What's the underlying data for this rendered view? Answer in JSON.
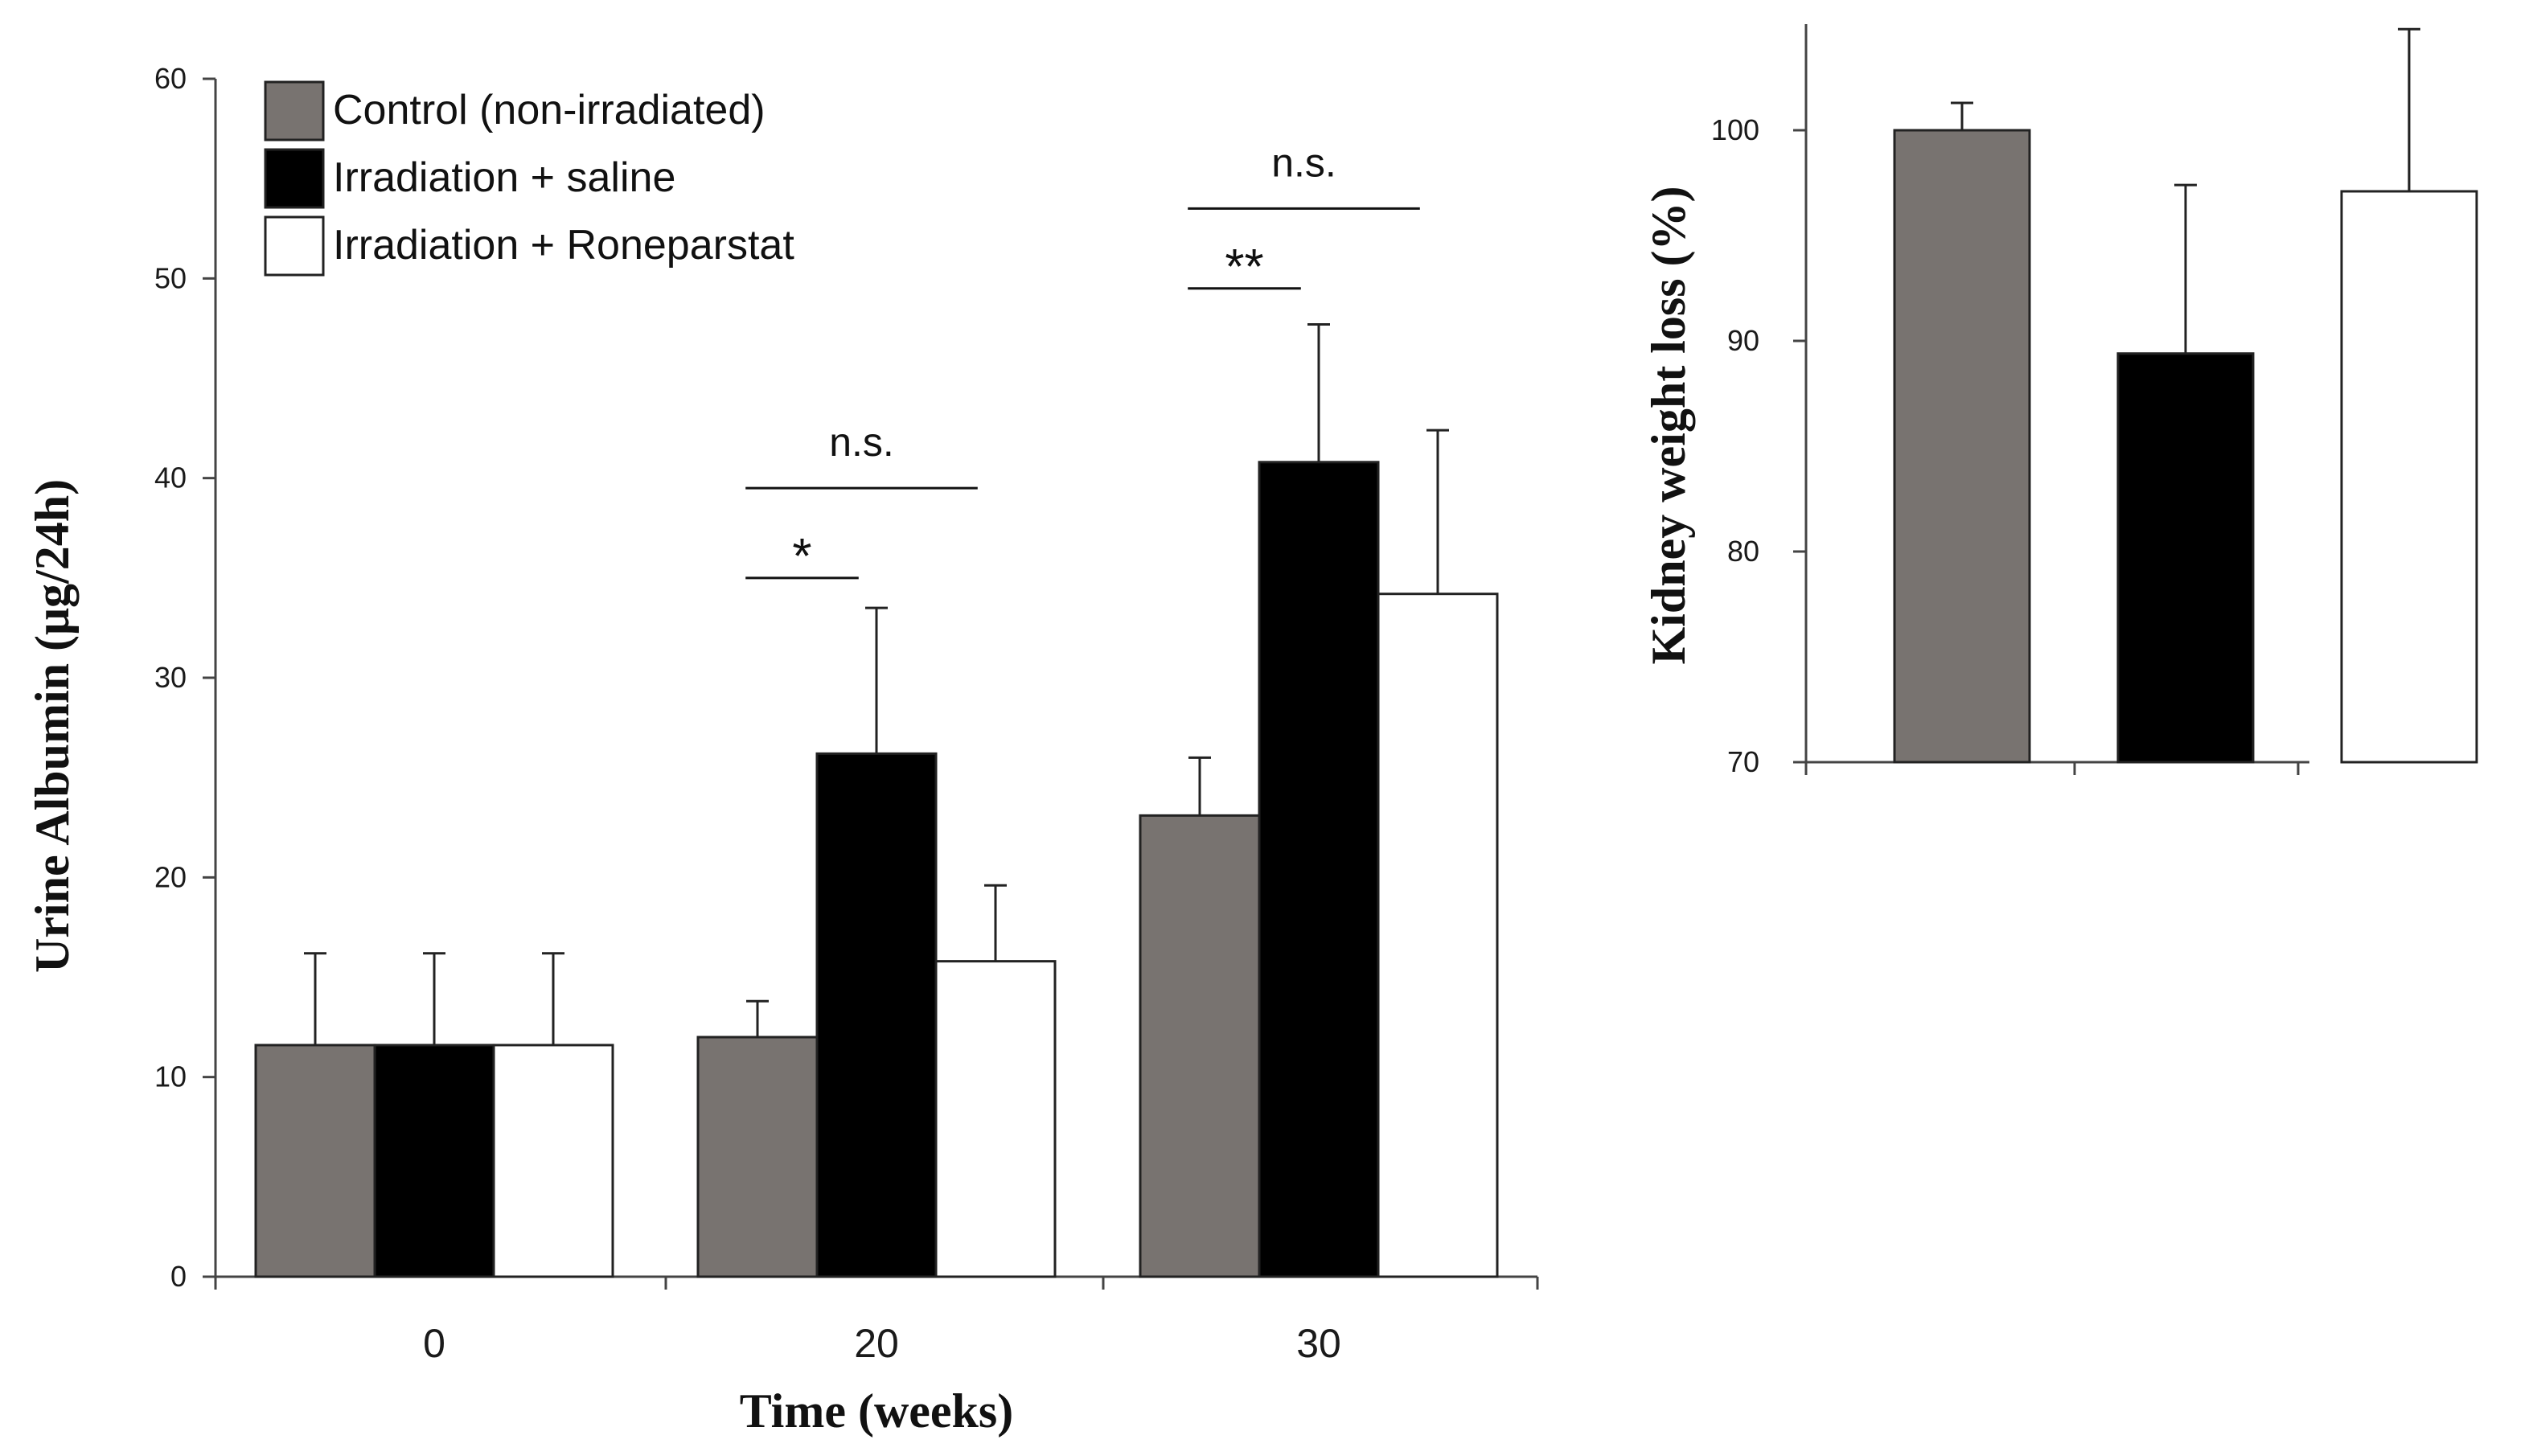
{
  "chart_data": [
    {
      "type": "bar",
      "title": "",
      "xlabel": "Time (weeks)",
      "ylabel": "Urine Albumin  (μg/24h)",
      "ylim": [
        0,
        60
      ],
      "yticks": [
        0,
        10,
        20,
        30,
        40,
        50,
        60
      ],
      "categories": [
        "0",
        "20",
        "30"
      ],
      "series": [
        {
          "name": "Control (non-irradiated)",
          "color": "#787370",
          "values": [
            11.6,
            12.0,
            23.1
          ],
          "errors": [
            4.6,
            1.8,
            2.9
          ]
        },
        {
          "name": "Irradiation + saline",
          "color": "#000000",
          "values": [
            11.6,
            26.2,
            40.8
          ],
          "errors": [
            4.6,
            7.3,
            6.9
          ]
        },
        {
          "name": "Irradiation + Roneparstat",
          "color": "#ffffff",
          "values": [
            11.6,
            15.8,
            34.2
          ],
          "errors": [
            4.6,
            3.8,
            8.2
          ]
        }
      ],
      "legend": {
        "position": "top-left"
      },
      "annotations": [
        {
          "category": "20",
          "from_series": 0,
          "to_series": 1,
          "label": "*",
          "y": 35
        },
        {
          "category": "20",
          "from_series": 0,
          "to_series": 2,
          "label": "n.s.",
          "y": 39.5
        },
        {
          "category": "30",
          "from_series": 0,
          "to_series": 1,
          "label": "**",
          "y": 49.5
        },
        {
          "category": "30",
          "from_series": 0,
          "to_series": 2,
          "label": "n.s.",
          "y": 53.5
        }
      ]
    },
    {
      "type": "bar",
      "title": "",
      "xlabel": "",
      "ylabel": "Kidney  weight loss (%)",
      "ylim": [
        70,
        105
      ],
      "yticks": [
        70,
        80,
        90,
        100
      ],
      "categories": [
        "Control (non-irradiated)",
        "Irradiation + saline",
        "Irradiation + Roneparstat"
      ],
      "colors": [
        "#787370",
        "#000000",
        "#ffffff"
      ],
      "values": [
        100,
        89.4,
        97.1
      ],
      "errors": [
        1.3,
        8.0,
        7.7
      ]
    }
  ]
}
